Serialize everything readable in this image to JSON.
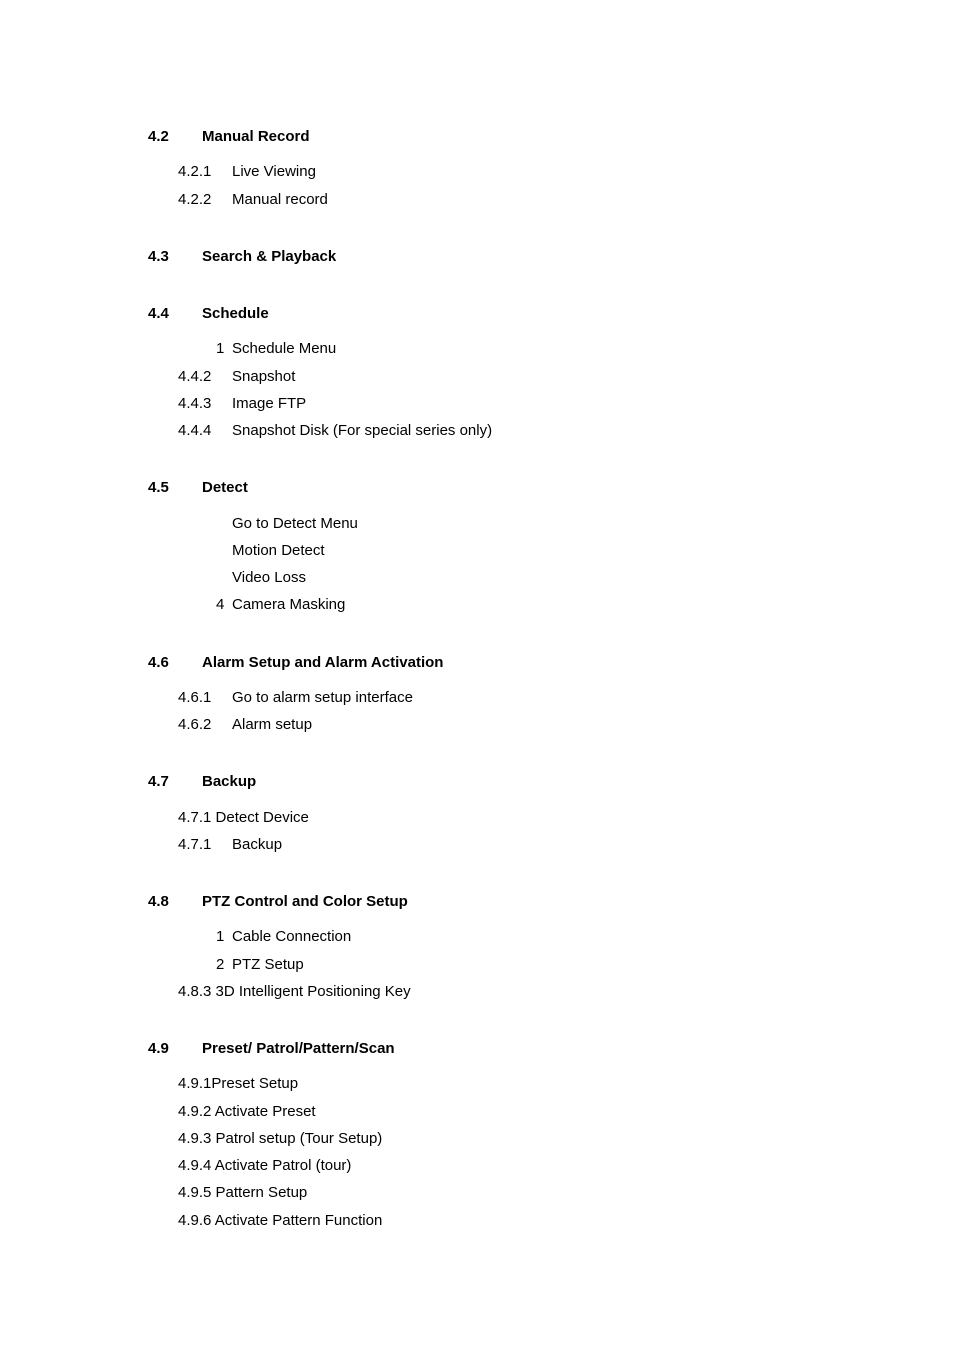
{
  "sections": [
    {
      "number": "4.2",
      "title": "Manual Record",
      "items": [
        {
          "num": "4.2.1",
          "label": "Live Viewing",
          "numStyle": 1
        },
        {
          "num": "4.2.2",
          "label": "Manual record",
          "numStyle": 1
        }
      ]
    },
    {
      "number": "4.3",
      "title": "Search & Playback",
      "items": []
    },
    {
      "number": "4.4",
      "title": "Schedule",
      "items": [
        {
          "num": "1",
          "label": "Schedule Menu",
          "numStyle": 2
        },
        {
          "num": "4.4.2",
          "label": "Snapshot",
          "numStyle": 1
        },
        {
          "num": "4.4.3",
          "label": "Image FTP",
          "numStyle": 1
        },
        {
          "num": "4.4.4",
          "label": "Snapshot Disk (For special series only)",
          "numStyle": 1
        }
      ]
    },
    {
      "number": "4.5",
      "title": "Detect",
      "items": [
        {
          "num": "",
          "label": "Go to Detect Menu",
          "numStyle": 1
        },
        {
          "num": "",
          "label": "Motion Detect",
          "numStyle": 1
        },
        {
          "num": "",
          "label": "Video Loss",
          "numStyle": 1
        },
        {
          "num": "4",
          "label": "Camera Masking",
          "numStyle": 2
        }
      ]
    },
    {
      "number": "4.6",
      "title": "Alarm Setup and Alarm Activation",
      "items": [
        {
          "num": "4.6.1",
          "label": "Go to alarm setup interface",
          "numStyle": 1
        },
        {
          "num": "4.6.2",
          "label": "Alarm setup",
          "numStyle": 1
        }
      ]
    },
    {
      "number": "4.7",
      "title": "Backup",
      "items": [
        {
          "num": "4.7.1 Detect Device",
          "label": "",
          "numStyle": 0
        },
        {
          "num": "4.7.1",
          "label": "Backup",
          "numStyle": 1
        }
      ]
    },
    {
      "number": "4.8",
      "title": "PTZ Control and Color Setup",
      "items": [
        {
          "num": "1",
          "label": "Cable Connection",
          "numStyle": 2
        },
        {
          "num": "2",
          "label": "PTZ Setup",
          "numStyle": 2
        },
        {
          "num": "4.8.3 3D Intelligent Positioning Key",
          "label": "",
          "numStyle": 0
        }
      ]
    },
    {
      "number": "4.9",
      "title": "Preset/ Patrol/Pattern/Scan",
      "items": [
        {
          "num": "4.9.1Preset Setup",
          "label": "",
          "numStyle": 0
        },
        {
          "num": "4.9.2 Activate Preset",
          "label": "",
          "numStyle": 0
        },
        {
          "num": "4.9.3 Patrol setup (Tour Setup)",
          "label": "",
          "numStyle": 0
        },
        {
          "num": "4.9.4 Activate Patrol (tour)",
          "label": "",
          "numStyle": 0
        },
        {
          "num": "4.9.5 Pattern Setup",
          "label": "",
          "numStyle": 0
        },
        {
          "num": "4.9.6 Activate Pattern Function",
          "label": "",
          "numStyle": 0
        }
      ]
    }
  ]
}
